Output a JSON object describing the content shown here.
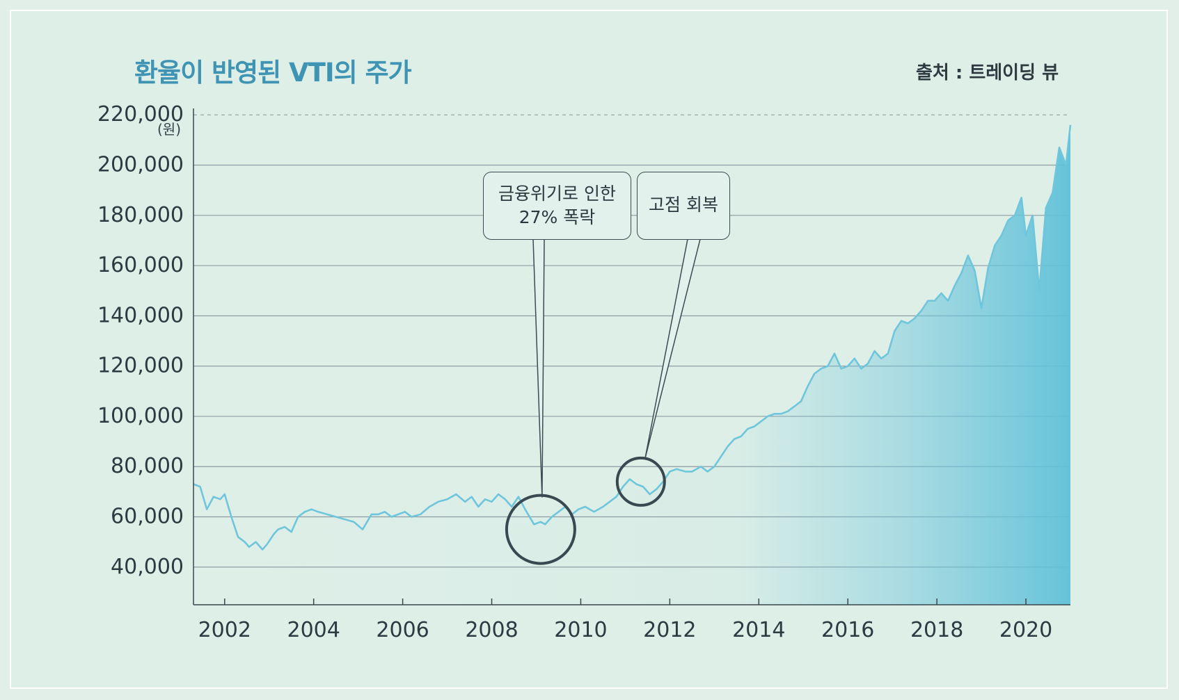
{
  "title": "환율이 반영된 VTI의 주가",
  "source": "출처 : 트레이딩 뷰",
  "chart_data": {
    "type": "area",
    "title": "환율이 반영된 VTI의 주가",
    "ylabel": "(원)",
    "xlabel": "",
    "ylim": [
      25000,
      222000
    ],
    "xlim": [
      2001.3,
      2021.0
    ],
    "grid": true,
    "y_ticks": [
      "220,000",
      "200,000",
      "180,000",
      "160,000",
      "140,000",
      "120,000",
      "100,000",
      "80,000",
      "60,000",
      "40,000"
    ],
    "y_tick_values": [
      220000,
      200000,
      180000,
      160000,
      140000,
      120000,
      100000,
      80000,
      60000,
      40000
    ],
    "x_ticks": [
      "2002",
      "2004",
      "2006",
      "2008",
      "2010",
      "2012",
      "2014",
      "2016",
      "2018",
      "2020"
    ],
    "x_tick_values": [
      2002,
      2004,
      2006,
      2008,
      2010,
      2012,
      2014,
      2016,
      2018,
      2020
    ],
    "series": [
      {
        "color": "#6fc6dc",
        "x": [
          2001.3,
          2001.45,
          2001.6,
          2001.75,
          2001.9,
          2002.0,
          2002.15,
          2002.3,
          2002.45,
          2002.55,
          2002.7,
          2002.85,
          2002.95,
          2003.1,
          2003.2,
          2003.35,
          2003.5,
          2003.65,
          2003.8,
          2003.95,
          2004.1,
          2004.3,
          2004.5,
          2004.7,
          2004.9,
          2005.1,
          2005.3,
          2005.45,
          2005.6,
          2005.75,
          2005.9,
          2006.05,
          2006.2,
          2006.4,
          2006.6,
          2006.8,
          2007.0,
          2007.2,
          2007.4,
          2007.55,
          2007.7,
          2007.85,
          2008.0,
          2008.15,
          2008.3,
          2008.45,
          2008.6,
          2008.75,
          2008.85,
          2008.95,
          2009.1,
          2009.2,
          2009.35,
          2009.5,
          2009.65,
          2009.8,
          2009.95,
          2010.1,
          2010.3,
          2010.5,
          2010.65,
          2010.8,
          2010.95,
          2011.1,
          2011.25,
          2011.4,
          2011.55,
          2011.7,
          2011.85,
          2012.0,
          2012.15,
          2012.35,
          2012.5,
          2012.7,
          2012.85,
          2013.0,
          2013.15,
          2013.3,
          2013.45,
          2013.6,
          2013.75,
          2013.9,
          2014.05,
          2014.2,
          2014.35,
          2014.5,
          2014.65,
          2014.8,
          2014.95,
          2015.1,
          2015.25,
          2015.4,
          2015.55,
          2015.7,
          2015.85,
          2016.0,
          2016.15,
          2016.3,
          2016.45,
          2016.6,
          2016.75,
          2016.9,
          2017.05,
          2017.2,
          2017.35,
          2017.5,
          2017.65,
          2017.8,
          2017.95,
          2018.1,
          2018.25,
          2018.4,
          2018.55,
          2018.7,
          2018.85,
          2019.0,
          2019.15,
          2019.3,
          2019.45,
          2019.6,
          2019.75,
          2019.9,
          2020.0,
          2020.15,
          2020.3,
          2020.45,
          2020.6,
          2020.75,
          2020.9,
          2021.0
        ],
        "y": [
          73000,
          72000,
          63000,
          68000,
          67000,
          69000,
          60000,
          52000,
          50000,
          48000,
          50000,
          47000,
          49000,
          53000,
          55000,
          56000,
          54000,
          60000,
          62000,
          63000,
          62000,
          61000,
          60000,
          59000,
          58000,
          55000,
          61000,
          61000,
          62000,
          60000,
          61000,
          62000,
          60000,
          61000,
          64000,
          66000,
          67000,
          69000,
          66000,
          68000,
          64000,
          67000,
          66000,
          69000,
          67000,
          64000,
          68000,
          63000,
          60000,
          57000,
          58000,
          57000,
          60000,
          62000,
          64000,
          61000,
          63000,
          64000,
          62000,
          64000,
          66000,
          68000,
          72000,
          75000,
          73000,
          72000,
          69000,
          71000,
          74000,
          78000,
          79000,
          78000,
          78000,
          80000,
          78000,
          80000,
          84000,
          88000,
          91000,
          92000,
          95000,
          96000,
          98000,
          100000,
          101000,
          101000,
          102000,
          104000,
          106000,
          112000,
          117000,
          119000,
          120000,
          125000,
          119000,
          120000,
          123000,
          119000,
          121000,
          126000,
          123000,
          125000,
          134000,
          138000,
          137000,
          139000,
          142000,
          146000,
          146000,
          149000,
          146000,
          152000,
          157000,
          164000,
          158000,
          143000,
          159000,
          168000,
          172000,
          178000,
          180000,
          187000,
          172000,
          180000,
          150000,
          183000,
          189000,
          207000,
          200000,
          216000
        ]
      }
    ],
    "annotations": [
      {
        "lines": [
          "금융위기로 인한",
          "27% 폭락"
        ],
        "x": 2009.1,
        "y": 55000
      },
      {
        "lines": [
          "고점 회복"
        ],
        "x": 2011.35,
        "y": 74000
      }
    ]
  }
}
